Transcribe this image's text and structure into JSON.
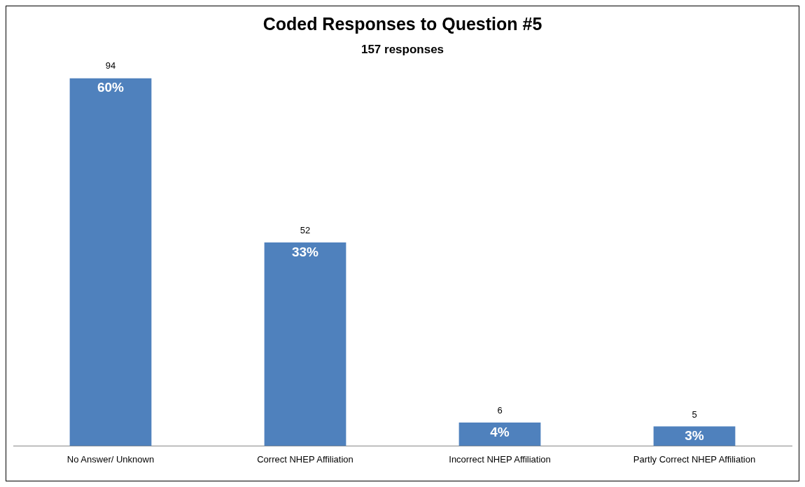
{
  "chart_data": {
    "type": "bar",
    "title": "Coded Responses to Question #5",
    "subtitle": "157 responses",
    "categories": [
      "No Answer/ Unknown",
      "Correct NHEP Affiliation",
      "Incorrect NHEP Affiliation",
      "Partly Correct NHEP Affiliation"
    ],
    "values": [
      94,
      52,
      6,
      5
    ],
    "color": "#4f81bd",
    "value_labels": [
      "94",
      "52",
      "6",
      "5"
    ],
    "annotations": [
      {
        "text": "60%",
        "x": "No Answer/ Unknown",
        "y": 94
      },
      {
        "text": "33%",
        "x": "Correct NHEP Affiliation",
        "y": 52
      },
      {
        "text": "4%",
        "x": "Incorrect NHEP Affiliation",
        "y": 6
      },
      {
        "text": "3%",
        "x": "Partly Correct NHEP Affiliation",
        "y": 5
      }
    ],
    "grid": false,
    "legend": false
  }
}
